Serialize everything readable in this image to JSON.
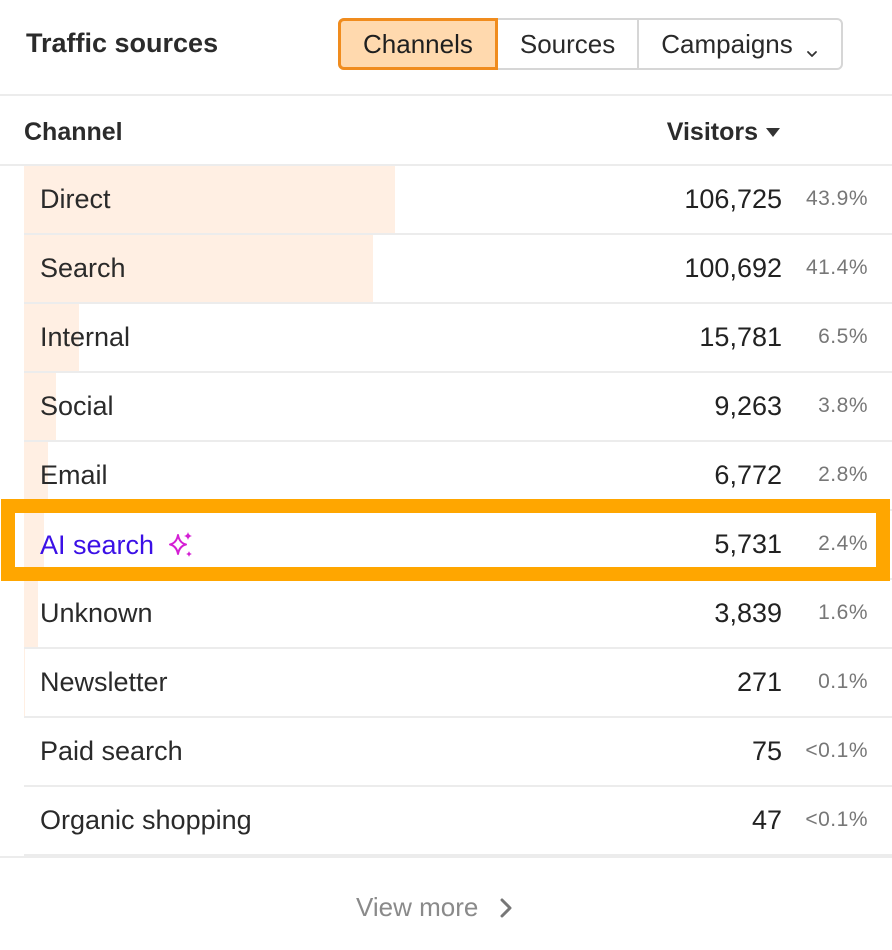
{
  "header": {
    "title": "Traffic sources",
    "tabs": [
      {
        "label": "Channels",
        "active": true
      },
      {
        "label": "Sources",
        "active": false
      },
      {
        "label": "Campaigns",
        "active": false,
        "dropdown": true
      }
    ]
  },
  "columns": {
    "channel": "Channel",
    "visitors": "Visitors"
  },
  "rows": [
    {
      "channel": "Direct",
      "visitors": "106,725",
      "percent": "43.9%",
      "share": 0.439
    },
    {
      "channel": "Search",
      "visitors": "100,692",
      "percent": "41.4%",
      "share": 0.414
    },
    {
      "channel": "Internal",
      "visitors": "15,781",
      "percent": "6.5%",
      "share": 0.065
    },
    {
      "channel": "Social",
      "visitors": "9,263",
      "percent": "3.8%",
      "share": 0.038
    },
    {
      "channel": "Email",
      "visitors": "6,772",
      "percent": "2.8%",
      "share": 0.028
    },
    {
      "channel": "AI search",
      "visitors": "5,731",
      "percent": "2.4%",
      "share": 0.024,
      "highlighted": true,
      "icon": "sparkle-icon"
    },
    {
      "channel": "Unknown",
      "visitors": "3,839",
      "percent": "1.6%",
      "share": 0.016
    },
    {
      "channel": "Newsletter",
      "visitors": "271",
      "percent": "0.1%",
      "share": 0.001
    },
    {
      "channel": "Paid search",
      "visitors": "75",
      "percent": "<0.1%",
      "share": 0.0003
    },
    {
      "channel": "Organic shopping",
      "visitors": "47",
      "percent": "<0.1%",
      "share": 0.0002
    }
  ],
  "footer": {
    "view_more": "View more"
  },
  "colors": {
    "accent": "#f08c1e",
    "active_tab_bg": "#ffd9ae",
    "bar": "#ffefe3",
    "highlight": "#ffa600",
    "ai_text": "#3b10e6",
    "sparkle": "#d41fd4"
  }
}
